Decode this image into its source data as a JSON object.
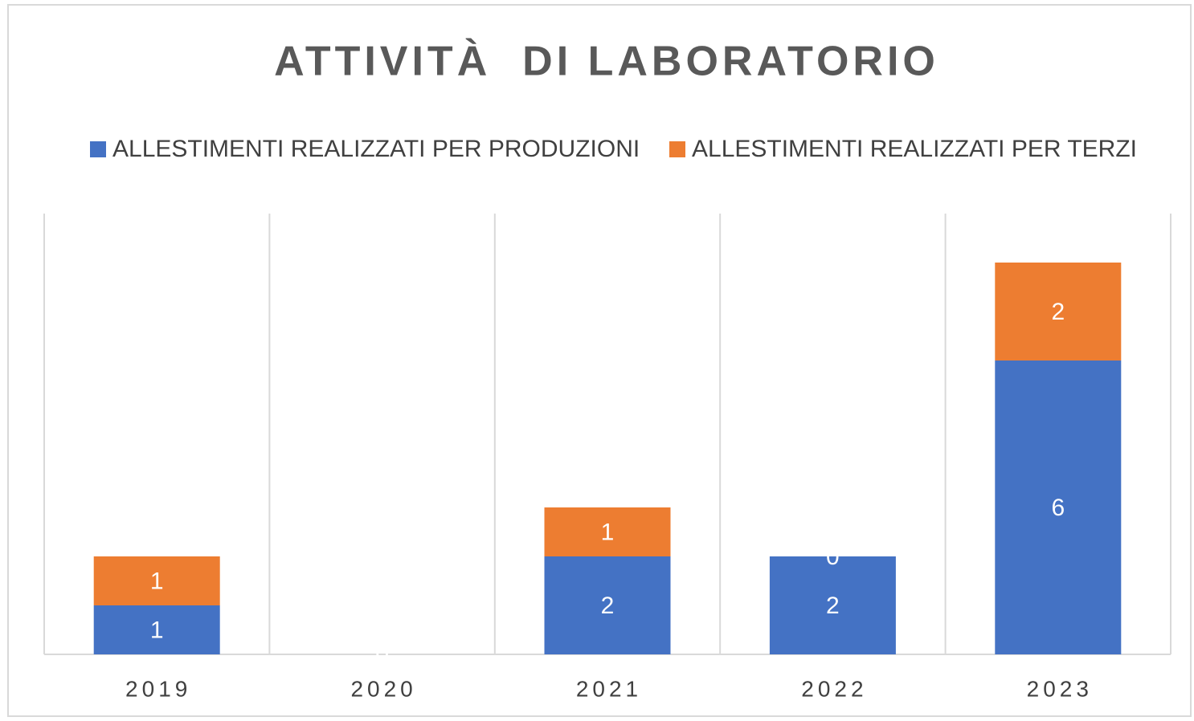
{
  "chart_data": {
    "type": "stacked_bar",
    "title": "ATTIVITÀ  DI LABORATORIO",
    "categories": [
      "2019",
      "2020",
      "2021",
      "2022",
      "2023"
    ],
    "series": [
      {
        "name": "ALLESTIMENTI REALIZZATI PER PRODUZIONI",
        "color": "#4472c4",
        "values": [
          1,
          0,
          2,
          2,
          6
        ]
      },
      {
        "name": "ALLESTIMENTI REALIZZATI PER TERZI",
        "color": "#ed7d31",
        "values": [
          1,
          0,
          1,
          0,
          2
        ]
      }
    ],
    "ylim": [
      0,
      9
    ],
    "legend": "top"
  }
}
